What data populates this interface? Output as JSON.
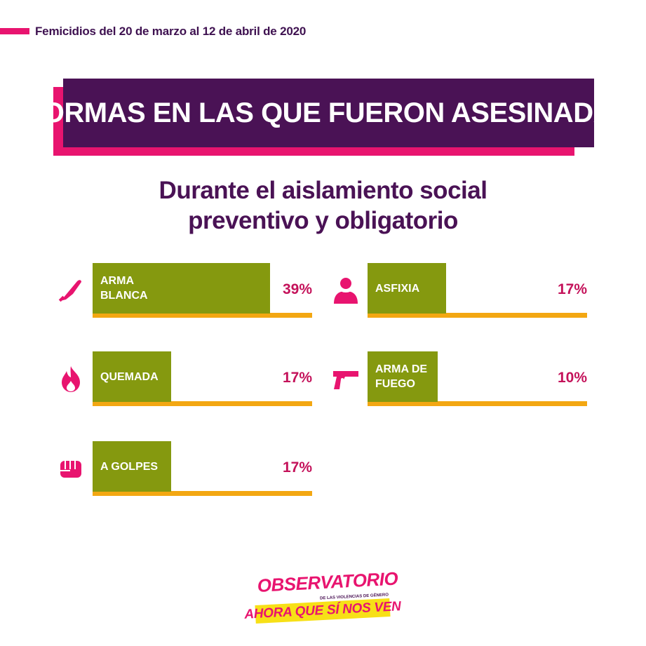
{
  "header": {
    "label": "Femicidios del 20 de marzo al 12 de abril de 2020"
  },
  "title": "FORMAS EN LAS QUE FUERON ASESINADAS",
  "subtitle": {
    "line1": "Durante el aislamiento social",
    "line2": "preventivo y obligatorio"
  },
  "colors": {
    "purple": "#4a1255",
    "pink": "#e8146f",
    "bar": "#85990f",
    "track": "#f3a712",
    "percent": "#c4125a"
  },
  "chart_data": {
    "type": "bar",
    "title": "FORMAS EN LAS QUE FUERON ASESINADAS",
    "subtitle": "Durante el aislamiento social preventivo y obligatorio",
    "xlabel": "",
    "ylabel": "",
    "unit": "%",
    "ylim": [
      0,
      100
    ],
    "grid": false,
    "items": [
      {
        "label": "ARMA\nBLANCA",
        "value": 39,
        "display": "39%",
        "icon": "knife-icon"
      },
      {
        "label": "ASFIXIA",
        "value": 17,
        "display": "17%",
        "icon": "asphyxia-icon"
      },
      {
        "label": "QUEMADA",
        "value": 17,
        "display": "17%",
        "icon": "fire-icon"
      },
      {
        "label": "ARMA DE\nFUEGO",
        "value": 10,
        "display": "10%",
        "icon": "gun-icon"
      },
      {
        "label": "A GOLPES",
        "value": 17,
        "display": "17%",
        "icon": "fist-icon"
      }
    ]
  },
  "logo": {
    "top": "OBSERVATORIO",
    "small": "DE LAS VIOLENCIAS DE GÉNERO",
    "bottom": "AHORA QUE SÍ NOS VEN"
  }
}
